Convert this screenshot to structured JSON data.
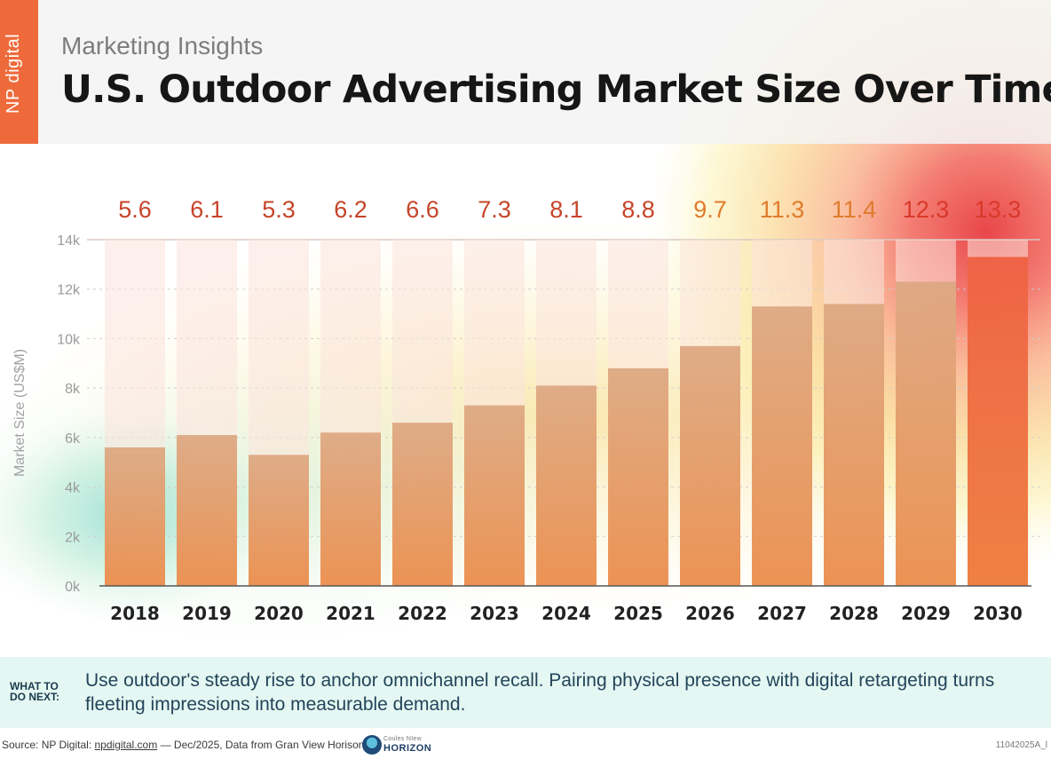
{
  "header": {
    "logo": "NP digital",
    "kicker": "Marketing Insights",
    "title": "U.S. Outdoor Advertising Market Size Over Time"
  },
  "chart_data": {
    "type": "bar",
    "title": "U.S. Outdoor Advertising Market Size Over Time",
    "categories": [
      "2018",
      "2019",
      "2020",
      "2021",
      "2022",
      "2023",
      "2024",
      "2025",
      "2026",
      "2027",
      "2028",
      "2029",
      "2030"
    ],
    "values": [
      5.6,
      6.1,
      5.3,
      6.2,
      6.6,
      7.3,
      8.1,
      8.8,
      9.7,
      11.3,
      11.4,
      12.3,
      13.3
    ],
    "value_labels": [
      "5.6",
      "6.1",
      "5.3",
      "6.2",
      "6.6",
      "7.3",
      "8.1",
      "8.8",
      "9.7",
      "11.3",
      "11.4",
      "12.3",
      "13.3"
    ],
    "ylabel": "Market Size (US$M)",
    "xlabel": "",
    "yticks": [
      "0k",
      "2k",
      "4k",
      "6k",
      "8k",
      "10k",
      "12k",
      "14k"
    ],
    "ylim": [
      0,
      14
    ],
    "grid": true,
    "legend": "none",
    "colors": {
      "value_label_low": "#c6452a",
      "value_label_high": "#e07b2c",
      "bar_low": "#e79a6a",
      "bar_high": "#e94a33",
      "background_column": "#fbe3dc"
    }
  },
  "next_steps": {
    "label": "WHAT TO DO NEXT:",
    "text": "Use outdoor's steady rise to anchor omnichannel recall. Pairing physical presence with digital retargeting turns fleeting impressions into measurable demand."
  },
  "footer": {
    "source_prefix": "Source: NP Digital:",
    "source_link": "npdigital.com",
    "source_suffix": "— Dec/2025, Data from Gran View Horison.",
    "partner_small": "Coules NIew",
    "partner_name": "HORIZON",
    "code": "11042025A_l"
  },
  "colors": {
    "accent": "#ee6a3a",
    "title": "#161616",
    "next_band": "#e4f7f2"
  }
}
